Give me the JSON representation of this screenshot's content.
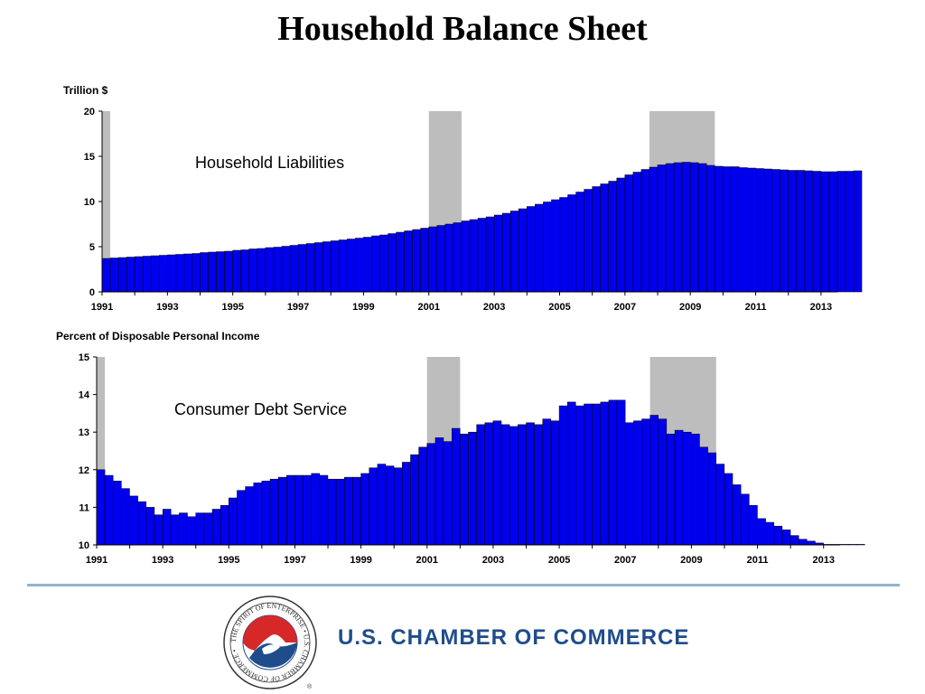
{
  "title": "Household Balance Sheet",
  "organization": "U.S. CHAMBER OF COMMERCE",
  "logo_text": "THE SPIRIT OF ENTERPRISE • U.S. CHAMBER OF COMMERCE •",
  "colors": {
    "bar": "#0000ee",
    "recession": "#bdbdbd",
    "rule": "#8fb3d3",
    "brand": "#1f4d8c",
    "logo_red": "#d62828"
  },
  "chart_data": [
    {
      "type": "bar",
      "title": "",
      "ylabel": "Trillion $",
      "annotation": "Household Liabilities",
      "xlim": [
        1991.0,
        2013.5
      ],
      "ylim": [
        0,
        20
      ],
      "yticks": [
        0,
        5,
        10,
        15,
        20
      ],
      "xtick_labels": [
        "1991",
        "1993",
        "1995",
        "1997",
        "1999",
        "2001",
        "2003",
        "2005",
        "2007",
        "2009",
        "2011",
        "2013"
      ],
      "recessions": [
        [
          1991.0,
          1991.25
        ],
        [
          2001.0,
          2001.0
        ],
        [
          2007.75,
          2009.5
        ]
      ],
      "x_start": 1991.0,
      "x_step": 0.25,
      "values": [
        3.7,
        3.75,
        3.8,
        3.85,
        3.9,
        3.95,
        4.0,
        4.05,
        4.1,
        4.15,
        4.2,
        4.25,
        4.35,
        4.4,
        4.45,
        4.5,
        4.6,
        4.65,
        4.75,
        4.8,
        4.9,
        4.95,
        5.05,
        5.15,
        5.25,
        5.35,
        5.45,
        5.55,
        5.65,
        5.75,
        5.85,
        5.95,
        6.05,
        6.2,
        6.3,
        6.45,
        6.6,
        6.75,
        6.9,
        7.05,
        7.2,
        7.35,
        7.5,
        7.65,
        7.85,
        8.0,
        8.15,
        8.3,
        8.5,
        8.7,
        8.95,
        9.2,
        9.45,
        9.7,
        9.95,
        10.2,
        10.45,
        10.75,
        11.05,
        11.35,
        11.65,
        11.95,
        12.25,
        12.6,
        12.95,
        13.25,
        13.55,
        13.8,
        14.05,
        14.2,
        14.3,
        14.35,
        14.3,
        14.2,
        14.0,
        13.9,
        13.85,
        13.85,
        13.75,
        13.7,
        13.65,
        13.6,
        13.55,
        13.5,
        13.45,
        13.45,
        13.4,
        13.35,
        13.3,
        13.3,
        13.35,
        13.35,
        13.4
      ]
    },
    {
      "type": "bar",
      "title": "",
      "ylabel": "Percent of Disposable Personal Income",
      "annotation": "Consumer Debt Service",
      "xlim": [
        1991.0,
        2013.5
      ],
      "ylim": [
        10,
        15
      ],
      "yticks": [
        10,
        11,
        12,
        13,
        14,
        15
      ],
      "xtick_labels": [
        "1991",
        "1993",
        "1995",
        "1997",
        "1999",
        "2001",
        "2003",
        "2005",
        "2007",
        "2009",
        "2011",
        "2013"
      ],
      "recessions": [
        [
          1991.0,
          1991.25
        ],
        [
          2001.0,
          2001.0
        ],
        [
          2007.75,
          2009.5
        ]
      ],
      "x_start": 1991.0,
      "x_step": 0.25,
      "values": [
        12.0,
        11.85,
        11.7,
        11.5,
        11.3,
        11.15,
        11.0,
        10.8,
        10.95,
        10.8,
        10.85,
        10.75,
        10.85,
        10.85,
        10.95,
        11.05,
        11.25,
        11.45,
        11.55,
        11.65,
        11.7,
        11.75,
        11.8,
        11.85,
        11.85,
        11.85,
        11.9,
        11.85,
        11.75,
        11.75,
        11.8,
        11.8,
        11.9,
        12.05,
        12.15,
        12.1,
        12.05,
        12.2,
        12.4,
        12.6,
        12.7,
        12.85,
        12.75,
        13.1,
        12.95,
        13.0,
        13.2,
        13.25,
        13.3,
        13.2,
        13.15,
        13.2,
        13.25,
        13.2,
        13.35,
        13.3,
        13.7,
        13.8,
        13.7,
        13.75,
        13.75,
        13.8,
        13.85,
        13.85,
        13.25,
        13.3,
        13.35,
        13.45,
        13.35,
        12.95,
        13.05,
        13.0,
        12.95,
        12.6,
        12.45,
        12.15,
        11.9,
        11.6,
        11.35,
        11.05,
        10.7,
        10.6,
        10.5,
        10.4,
        10.25,
        10.15,
        10.1,
        10.05,
        10.0,
        10.0,
        10.0,
        10.0,
        10.0
      ]
    }
  ]
}
